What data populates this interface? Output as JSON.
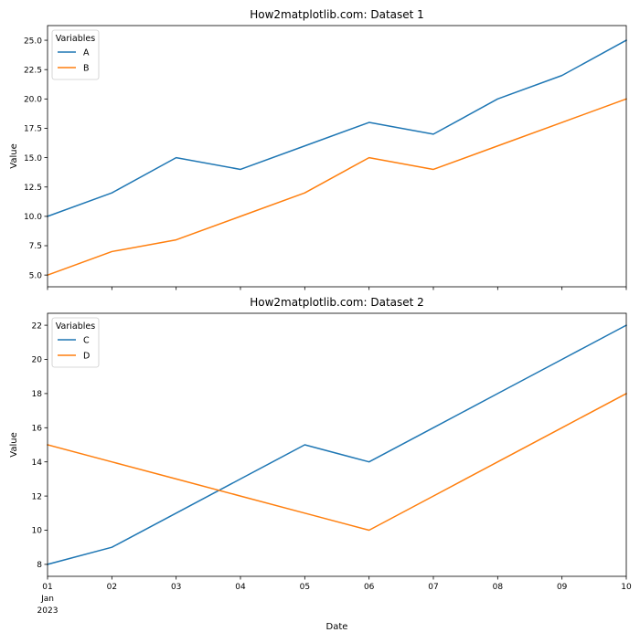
{
  "chart_data": [
    {
      "type": "line",
      "title": "How2matplotlib.com: Dataset 1",
      "xlabel": "",
      "ylabel": "Value",
      "x": [
        "2023-01-01",
        "2023-01-02",
        "2023-01-03",
        "2023-01-04",
        "2023-01-05",
        "2023-01-06",
        "2023-01-07",
        "2023-01-08",
        "2023-01-09",
        "2023-01-10"
      ],
      "xtick_labels": [],
      "series": [
        {
          "name": "A",
          "color": "#1f77b4",
          "values": [
            10,
            12,
            15,
            14,
            16,
            18,
            17,
            20,
            22,
            25
          ]
        },
        {
          "name": "B",
          "color": "#ff7f0e",
          "values": [
            5,
            7,
            8,
            10,
            12,
            15,
            14,
            16,
            18,
            20
          ]
        }
      ],
      "xlim": [
        "2023-01-01",
        "2023-01-10"
      ],
      "ylim": [
        4.0,
        26.25
      ],
      "yticks": [
        5.0,
        7.5,
        10.0,
        12.5,
        15.0,
        17.5,
        20.0,
        22.5,
        25.0
      ],
      "ytick_labels": [
        "5.0",
        "7.5",
        "10.0",
        "12.5",
        "15.0",
        "17.5",
        "20.0",
        "22.5",
        "25.0"
      ],
      "legend": {
        "title": "Variables",
        "placement": "upper-left"
      },
      "grid": false
    },
    {
      "type": "line",
      "title": "How2matplotlib.com: Dataset 2",
      "xlabel": "Date",
      "ylabel": "Value",
      "x": [
        "2023-01-01",
        "2023-01-02",
        "2023-01-03",
        "2023-01-04",
        "2023-01-05",
        "2023-01-06",
        "2023-01-07",
        "2023-01-08",
        "2023-01-09",
        "2023-01-10"
      ],
      "xtick_labels": [
        "01",
        "02",
        "03",
        "04",
        "05",
        "06",
        "07",
        "08",
        "09",
        "10"
      ],
      "xtick_sublabel": [
        "Jan",
        "2023"
      ],
      "series": [
        {
          "name": "C",
          "color": "#1f77b4",
          "values": [
            8,
            9,
            11,
            13,
            15,
            14,
            16,
            18,
            20,
            22
          ]
        },
        {
          "name": "D",
          "color": "#ff7f0e",
          "values": [
            15,
            14,
            13,
            12,
            11,
            10,
            12,
            14,
            16,
            18
          ]
        }
      ],
      "xlim": [
        "2023-01-01",
        "2023-01-10"
      ],
      "ylim": [
        7.3,
        22.7
      ],
      "yticks": [
        8,
        10,
        12,
        14,
        16,
        18,
        20,
        22
      ],
      "ytick_labels": [
        "8",
        "10",
        "12",
        "14",
        "16",
        "18",
        "20",
        "22"
      ],
      "legend": {
        "title": "Variables",
        "placement": "upper-left"
      },
      "grid": false
    }
  ]
}
